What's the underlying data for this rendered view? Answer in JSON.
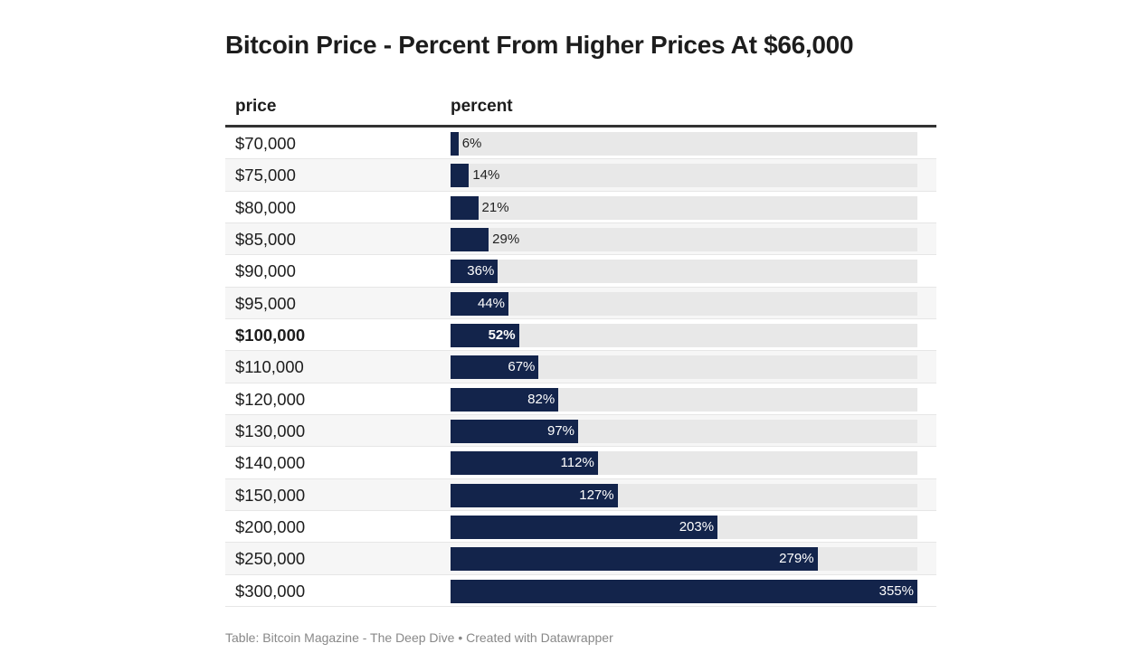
{
  "title": "Bitcoin Price - Percent From Higher Prices At $66,000",
  "footer": "Table: Bitcoin Magazine - The Deep Dive • Created with Datawrapper",
  "colors": {
    "bar": "#13244b",
    "track": "#e8e8e8",
    "row_alt": "#f6f6f6"
  },
  "chart_data": {
    "type": "table",
    "columns": [
      "price",
      "percent"
    ],
    "max_value": 355,
    "highlight_row": "$100,000",
    "rows": [
      {
        "price": "$70,000",
        "percent": 6,
        "label": "6%"
      },
      {
        "price": "$75,000",
        "percent": 14,
        "label": "14%"
      },
      {
        "price": "$80,000",
        "percent": 21,
        "label": "21%"
      },
      {
        "price": "$85,000",
        "percent": 29,
        "label": "29%"
      },
      {
        "price": "$90,000",
        "percent": 36,
        "label": "36%"
      },
      {
        "price": "$95,000",
        "percent": 44,
        "label": "44%"
      },
      {
        "price": "$100,000",
        "percent": 52,
        "label": "52%"
      },
      {
        "price": "$110,000",
        "percent": 67,
        "label": "67%"
      },
      {
        "price": "$120,000",
        "percent": 82,
        "label": "82%"
      },
      {
        "price": "$130,000",
        "percent": 97,
        "label": "97%"
      },
      {
        "price": "$140,000",
        "percent": 112,
        "label": "112%"
      },
      {
        "price": "$150,000",
        "percent": 127,
        "label": "127%"
      },
      {
        "price": "$200,000",
        "percent": 203,
        "label": "203%"
      },
      {
        "price": "$250,000",
        "percent": 279,
        "label": "279%"
      },
      {
        "price": "$300,000",
        "percent": 355,
        "label": "355%"
      }
    ]
  }
}
